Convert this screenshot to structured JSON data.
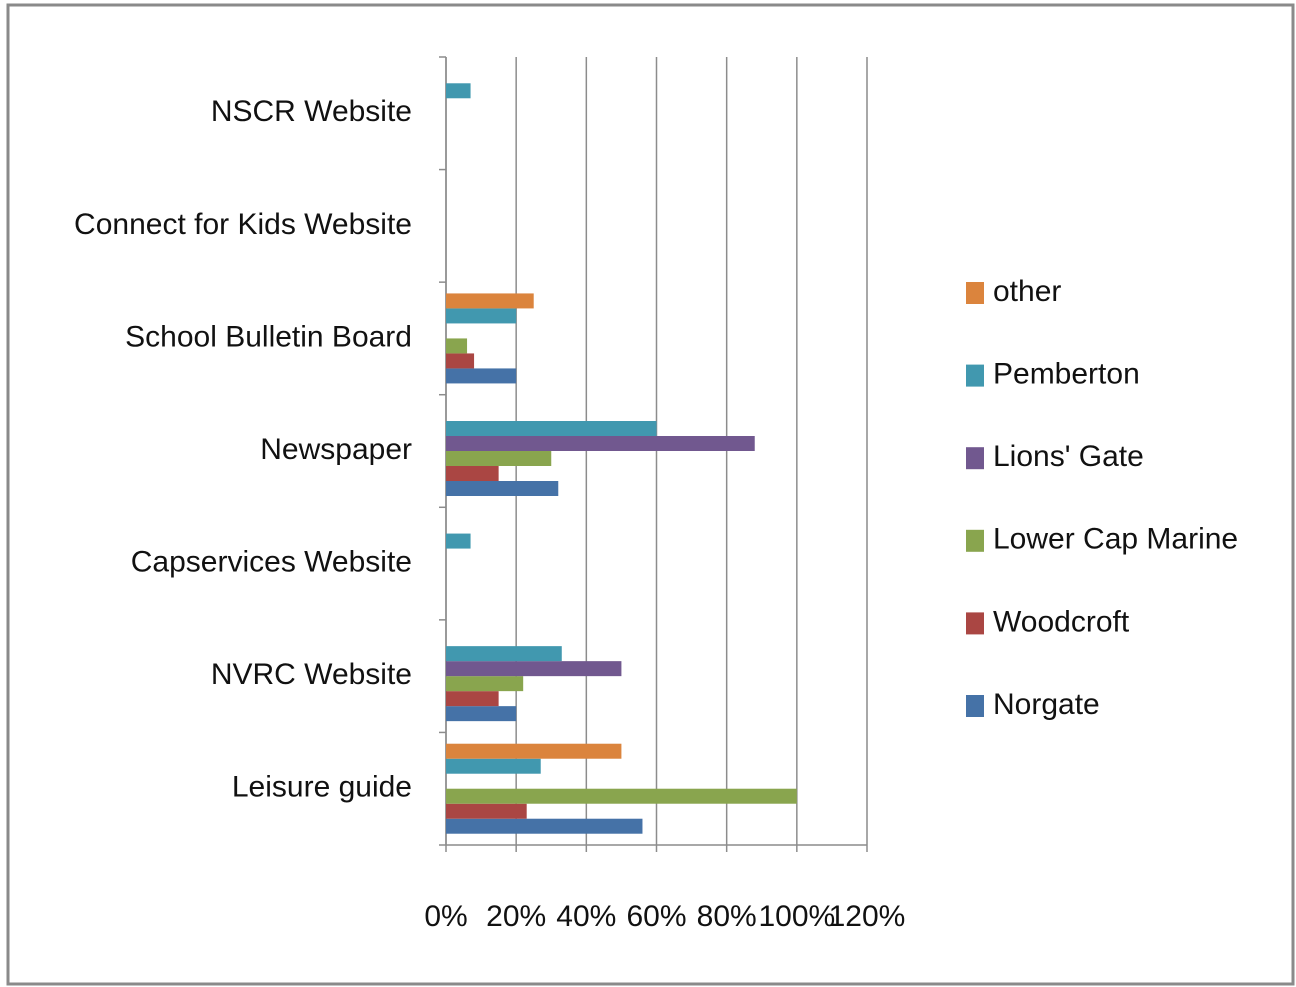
{
  "chart_data": {
    "type": "hbar",
    "categories": [
      "Leisure guide",
      "NVRC Website",
      "Capservices Website",
      "Newspaper",
      "School Bulletin Board",
      "Connect for Kids Website",
      "NSCR Website"
    ],
    "series": [
      {
        "name": "Norgate",
        "color": "#4572a7",
        "values": [
          56,
          20,
          0,
          32,
          20,
          0,
          0
        ]
      },
      {
        "name": "Woodcroft",
        "color": "#aa4643",
        "values": [
          23,
          15,
          0,
          15,
          8,
          0,
          0
        ]
      },
      {
        "name": "Lower Cap Marine",
        "color": "#89a54e",
        "values": [
          100,
          22,
          0,
          30,
          6,
          0,
          0
        ]
      },
      {
        "name": "Lions' Gate",
        "color": "#71588f",
        "values": [
          0,
          50,
          0,
          88,
          0,
          0,
          0
        ]
      },
      {
        "name": "Pemberton",
        "color": "#4198af",
        "values": [
          27,
          33,
          7,
          60,
          20,
          0,
          7
        ]
      },
      {
        "name": "other",
        "color": "#db843d",
        "values": [
          50,
          0,
          0,
          0,
          25,
          0,
          0
        ]
      }
    ],
    "xlim": [
      0,
      120
    ],
    "xticks": [
      {
        "value": 0,
        "label": "0%"
      },
      {
        "value": 20,
        "label": "20%"
      },
      {
        "value": 40,
        "label": "40%"
      },
      {
        "value": 60,
        "label": "60%"
      },
      {
        "value": 80,
        "label": "80%"
      },
      {
        "value": 100,
        "label": "100%"
      },
      {
        "value": 120,
        "label": "120%"
      }
    ],
    "grid": true,
    "legend": "right"
  }
}
